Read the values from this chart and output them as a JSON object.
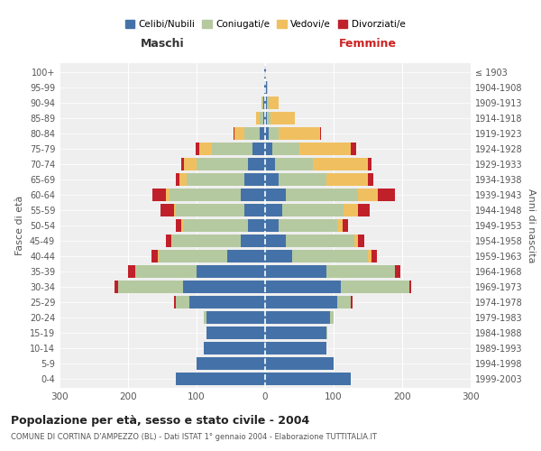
{
  "age_groups": [
    "0-4",
    "5-9",
    "10-14",
    "15-19",
    "20-24",
    "25-29",
    "30-34",
    "35-39",
    "40-44",
    "45-49",
    "50-54",
    "55-59",
    "60-64",
    "65-69",
    "70-74",
    "75-79",
    "80-84",
    "85-89",
    "90-94",
    "95-99",
    "100+"
  ],
  "birth_years": [
    "1999-2003",
    "1994-1998",
    "1989-1993",
    "1984-1988",
    "1979-1983",
    "1974-1978",
    "1969-1973",
    "1964-1968",
    "1959-1963",
    "1954-1958",
    "1949-1953",
    "1944-1948",
    "1939-1943",
    "1934-1938",
    "1929-1933",
    "1924-1928",
    "1919-1923",
    "1914-1918",
    "1909-1913",
    "1904-1908",
    "≤ 1903"
  ],
  "male": {
    "celibi": [
      130,
      100,
      90,
      85,
      85,
      110,
      120,
      100,
      55,
      35,
      25,
      30,
      35,
      30,
      25,
      18,
      8,
      3,
      2,
      1,
      1
    ],
    "coniugati": [
      0,
      0,
      0,
      1,
      5,
      20,
      95,
      90,
      100,
      100,
      95,
      100,
      105,
      85,
      75,
      60,
      22,
      5,
      2,
      0,
      0
    ],
    "vedovi": [
      0,
      0,
      0,
      0,
      0,
      0,
      0,
      0,
      1,
      2,
      2,
      3,
      5,
      10,
      18,
      18,
      15,
      5,
      1,
      0,
      0
    ],
    "divorziati": [
      0,
      0,
      0,
      0,
      0,
      3,
      5,
      10,
      10,
      8,
      8,
      20,
      20,
      5,
      5,
      5,
      1,
      0,
      0,
      0,
      0
    ]
  },
  "female": {
    "nubili": [
      125,
      100,
      90,
      90,
      95,
      105,
      110,
      90,
      40,
      30,
      20,
      25,
      30,
      20,
      15,
      10,
      5,
      3,
      3,
      2,
      1
    ],
    "coniugate": [
      0,
      0,
      0,
      1,
      5,
      20,
      100,
      100,
      110,
      100,
      85,
      90,
      105,
      70,
      55,
      40,
      15,
      5,
      2,
      0,
      0
    ],
    "vedove": [
      0,
      0,
      0,
      0,
      0,
      0,
      0,
      0,
      5,
      5,
      8,
      20,
      30,
      60,
      80,
      75,
      60,
      35,
      15,
      2,
      0
    ],
    "divorziate": [
      0,
      0,
      0,
      0,
      0,
      2,
      3,
      8,
      8,
      10,
      8,
      18,
      25,
      8,
      5,
      8,
      2,
      0,
      0,
      0,
      0
    ]
  },
  "colors": {
    "celibi": "#4472a8",
    "coniugati": "#b5c9a0",
    "vedovi": "#f0c060",
    "divorziati": "#c0202a"
  },
  "title": "Popolazione per età, sesso e stato civile - 2004",
  "subtitle": "COMUNE DI CORTINA D'AMPEZZO (BL) - Dati ISTAT 1° gennaio 2004 - Elaborazione TUTTITALIA.IT",
  "xlabel_left": "Maschi",
  "xlabel_right": "Femmine",
  "ylabel_left": "Fasce di età",
  "ylabel_right": "Anni di nascita",
  "legend_labels": [
    "Celibi/Nubili",
    "Coniugati/e",
    "Vedovi/e",
    "Divorziati/e"
  ],
  "xlim": 300,
  "background_color": "#ffffff",
  "grid_color": "#cccccc"
}
